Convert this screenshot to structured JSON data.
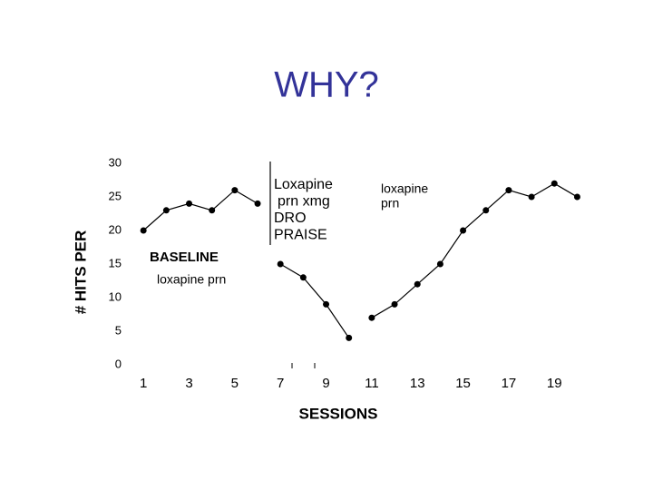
{
  "chart_data": {
    "type": "line",
    "title": "WHY?",
    "xlabel": "SESSIONS",
    "ylabel": "# HITS PER",
    "xlim": [
      0,
      21
    ],
    "xticks": [
      1,
      3,
      5,
      7,
      9,
      11,
      13,
      15,
      17,
      19
    ],
    "ylim": [
      0,
      30
    ],
    "yticks": [
      0,
      5,
      10,
      15,
      20,
      25,
      30
    ],
    "color": "#000000",
    "series": [
      {
        "x": [
          1,
          2,
          3,
          4,
          5,
          6
        ],
        "values": [
          20,
          23,
          24,
          23,
          26,
          24
        ]
      },
      {
        "x": [
          7,
          8,
          9,
          10
        ],
        "values": [
          15,
          13,
          9,
          4
        ]
      },
      {
        "x": [
          11,
          12,
          13,
          14,
          15,
          16,
          17,
          18,
          19,
          20
        ],
        "values": [
          7,
          9,
          12,
          15,
          20,
          23,
          26,
          25,
          27,
          25
        ]
      }
    ],
    "annotations": [
      [
        "BASELINE"
      ],
      [
        "loxapine prn"
      ],
      [
        "Loxapine",
        "prn xmg",
        "DRO",
        "PRAISE"
      ],
      [
        "loxapine",
        "prn"
      ]
    ]
  }
}
